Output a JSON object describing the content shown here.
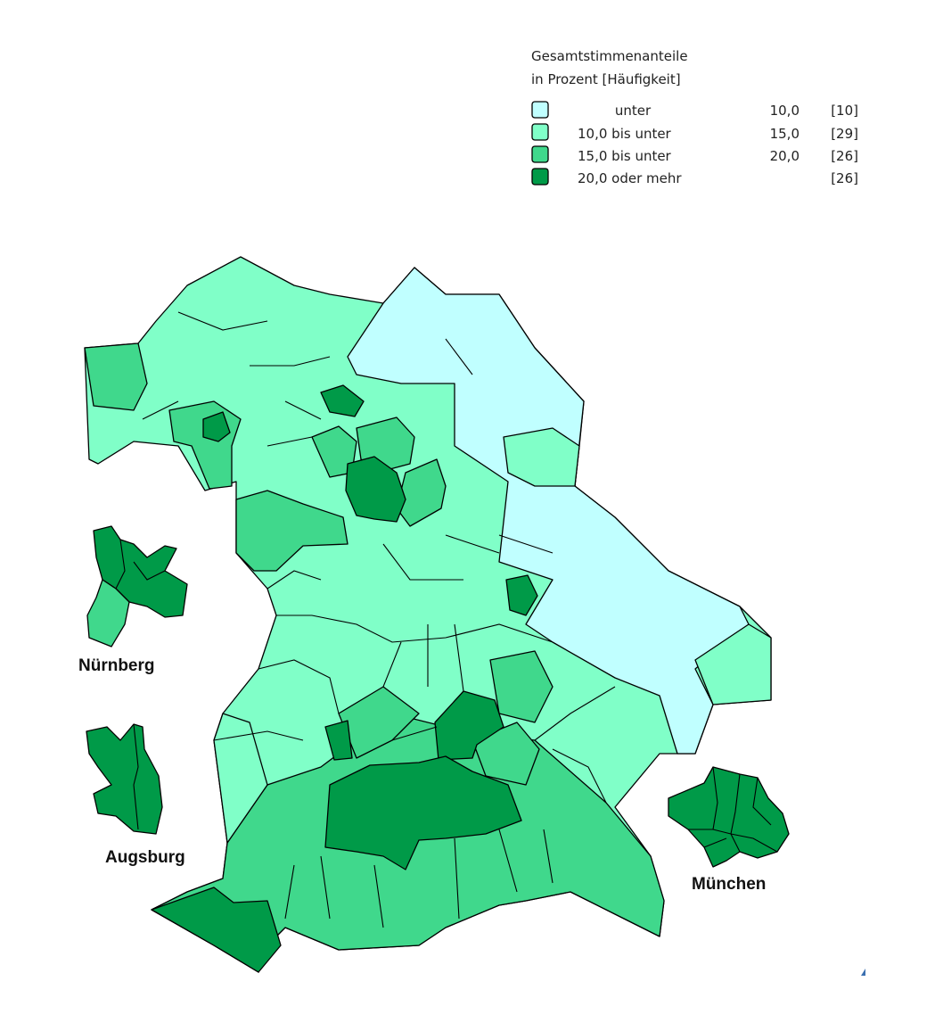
{
  "legend": {
    "title_lines": [
      "Gesamtstimmenanteile",
      "in Prozent [Häufigkeit]"
    ],
    "rows": [
      {
        "label": "unter",
        "bound": "10,0",
        "count": "[10]"
      },
      {
        "label": "10,0 bis unter",
        "bound": "15,0",
        "count": "[29]"
      },
      {
        "label": "15,0 bis unter",
        "bound": "20,0",
        "count": "[26]"
      },
      {
        "label": "20,0 oder mehr",
        "count": "[26]"
      }
    ]
  },
  "cities": [
    "Nürnberg",
    "Augsburg",
    "München"
  ]
}
